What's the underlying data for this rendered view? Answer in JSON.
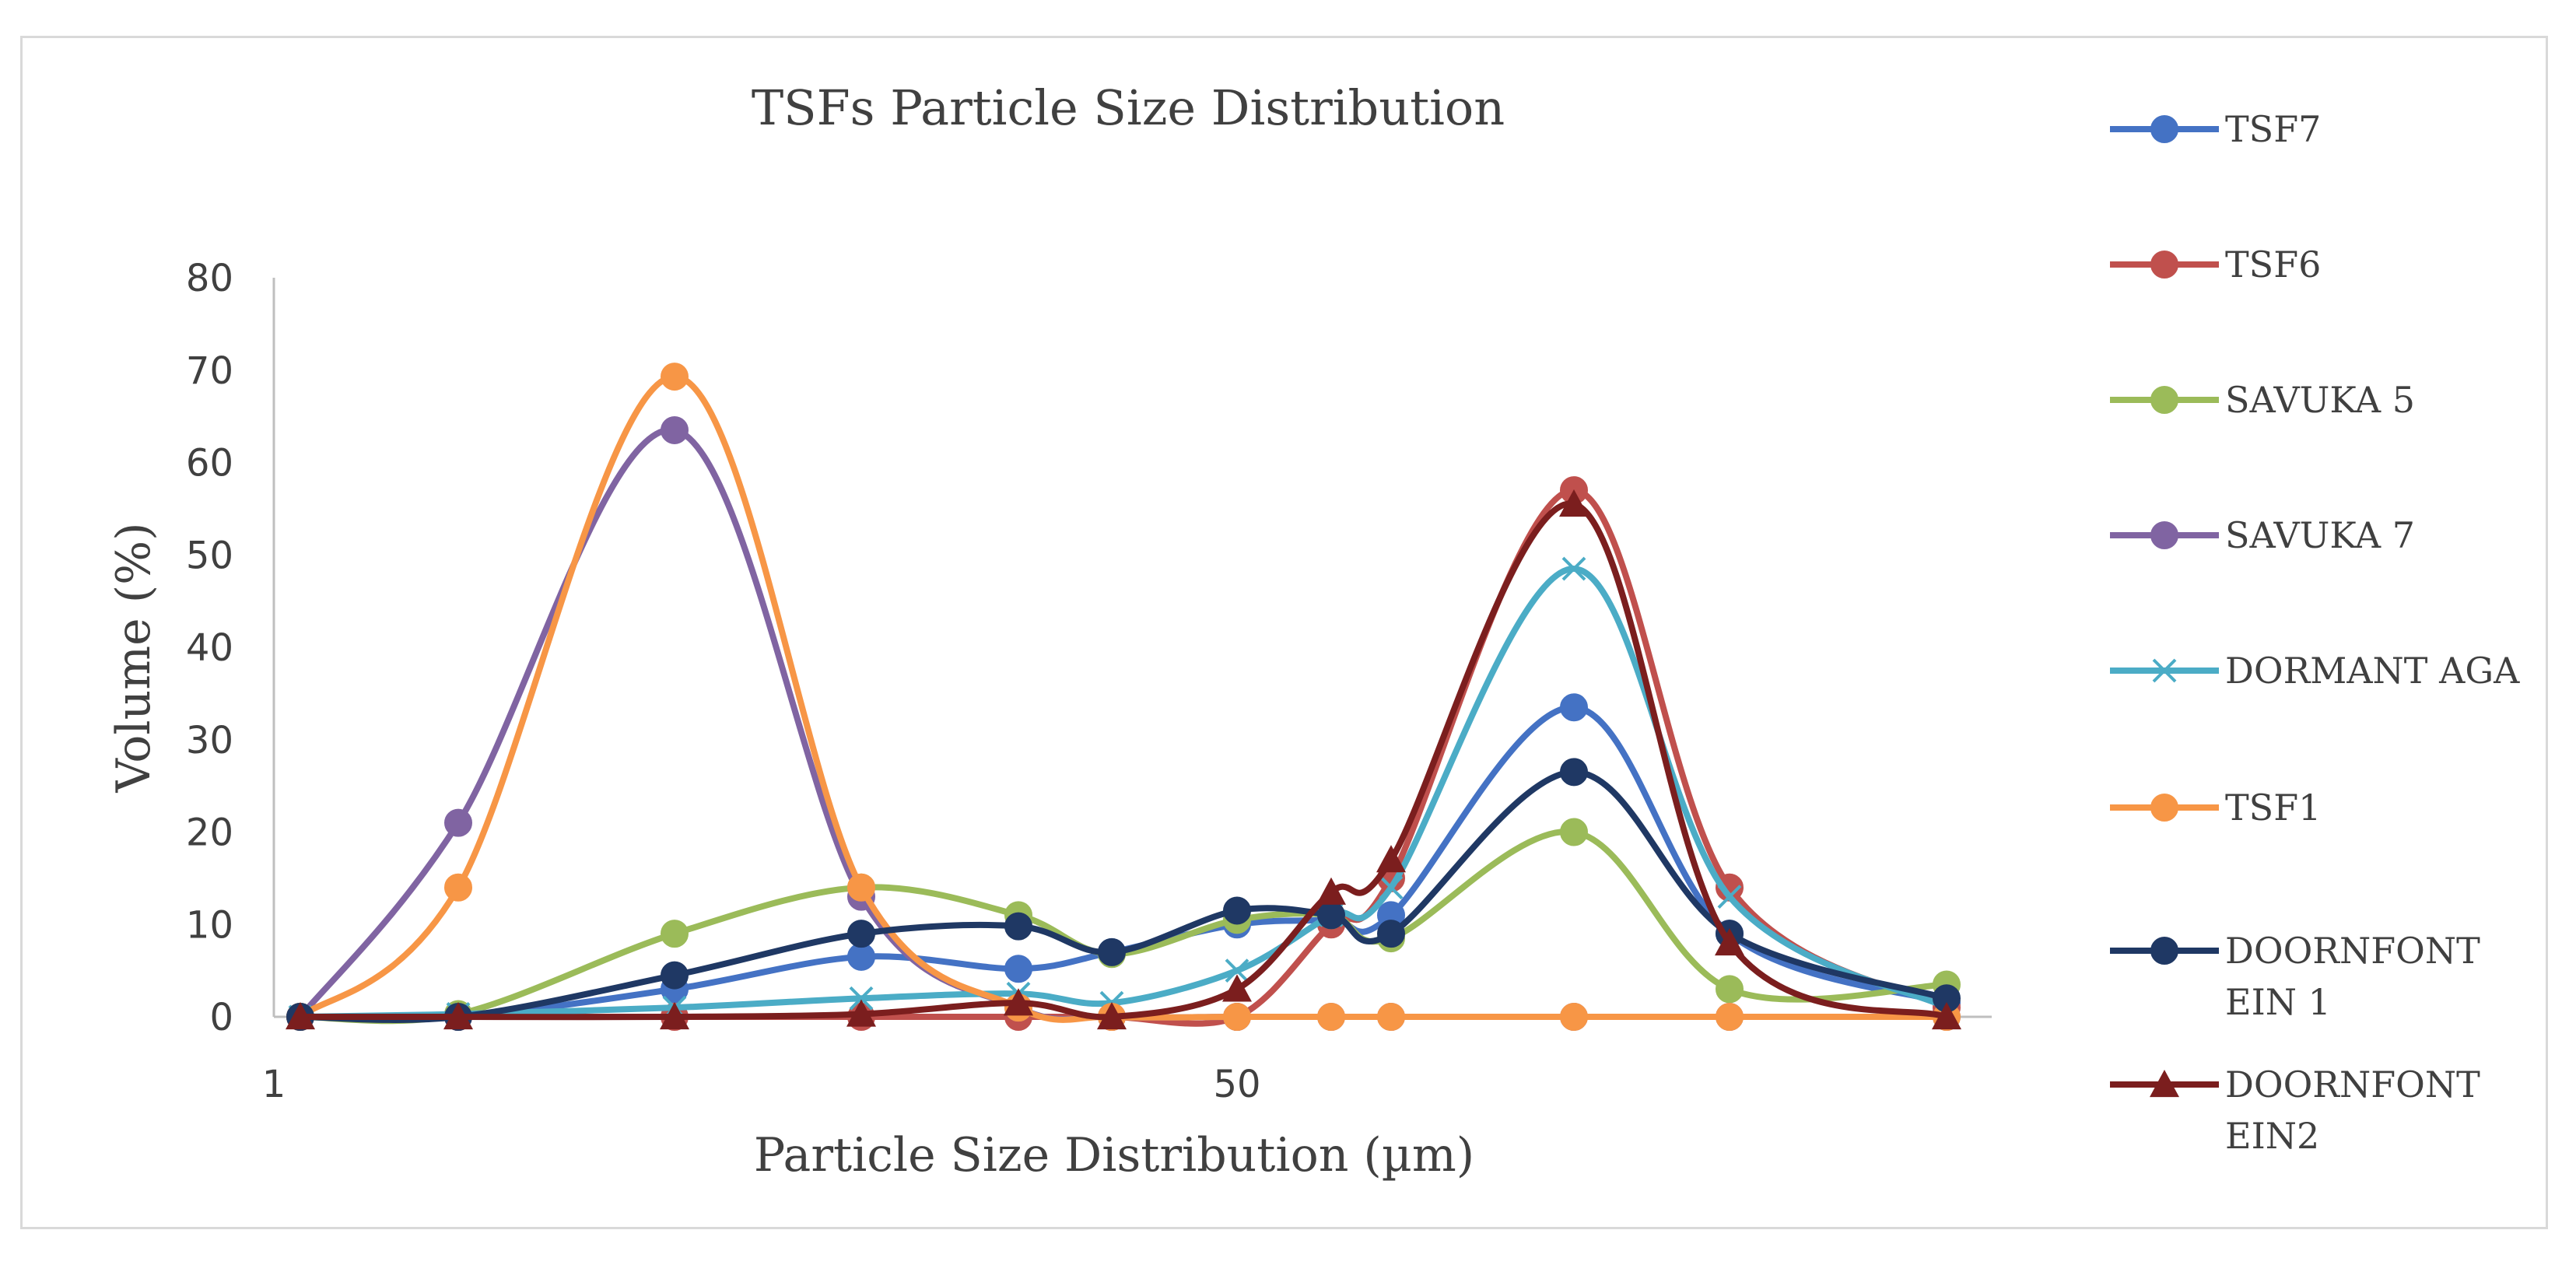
{
  "chart_data": {
    "type": "line",
    "title": "TSFs Particle Size Distribution",
    "xlabel": "Particle Size Distribution (µm)",
    "ylabel": "Volume (%)",
    "ylim": [
      0,
      80
    ],
    "yticks": [
      0,
      10,
      20,
      30,
      40,
      50,
      60,
      70,
      80
    ],
    "xtick_labels": [
      "1",
      "50"
    ],
    "legend_position": "right",
    "series": [
      {
        "name": "TSF7",
        "color": "#4472c4",
        "marker": "circle",
        "values": [
          0,
          0,
          3,
          6.5,
          5.2,
          7,
          10,
          10.5,
          11,
          33.5,
          9,
          1.5
        ]
      },
      {
        "name": "TSF6",
        "color": "#c0504d",
        "marker": "circle",
        "values": [
          0,
          0,
          0,
          0,
          0,
          0,
          0,
          10,
          15,
          57,
          14,
          1
        ]
      },
      {
        "name": "SAVUKA 5",
        "color": "#9bbb59",
        "marker": "circle",
        "values": [
          0,
          0.3,
          9,
          14,
          11,
          6.8,
          10.5,
          11,
          8.5,
          20,
          3,
          3.5
        ]
      },
      {
        "name": "SAVUKA 7",
        "color": "#8064a2",
        "marker": "circle",
        "values": [
          0,
          21,
          63.5,
          13,
          1,
          0,
          0,
          0,
          0,
          0,
          0,
          0
        ]
      },
      {
        "name": "DORMANT AGA",
        "color": "#4bacc6",
        "marker": "x",
        "values": [
          0,
          0.3,
          1,
          2,
          2.5,
          1.5,
          5,
          11,
          14,
          48.5,
          13,
          1
        ]
      },
      {
        "name": "TSF1",
        "color": "#f79646",
        "marker": "circle",
        "values": [
          0,
          14,
          69.3,
          14,
          1,
          0,
          0,
          0,
          0,
          0,
          0,
          0
        ]
      },
      {
        "name": "DOORNFONTEIN 1",
        "legend_lines": [
          "DOORNFONT",
          "EIN 1"
        ],
        "color": "#1f3864",
        "marker": "circle",
        "values": [
          0,
          0,
          4.5,
          9,
          9.8,
          7,
          11.5,
          11,
          9,
          26.5,
          9,
          2
        ]
      },
      {
        "name": "DOORNFONTEIN2",
        "legend_lines": [
          "DOORNFONT",
          "EIN2"
        ],
        "color": "#7b1e1e",
        "marker": "triangle",
        "values": [
          0,
          0,
          0,
          0.3,
          1.5,
          0,
          3,
          13.5,
          17,
          55.5,
          8,
          0
        ]
      }
    ]
  }
}
